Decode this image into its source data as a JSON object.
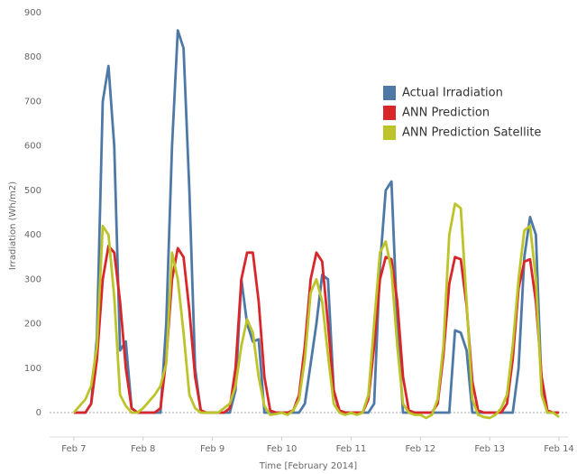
{
  "chart_data": {
    "type": "line",
    "x_label": "Time [February 2014]",
    "y_label": "Irradiation (Wh/m2)",
    "x": [
      7,
      7.083,
      7.167,
      7.25,
      7.333,
      7.417,
      7.5,
      7.583,
      7.667,
      7.75,
      7.833,
      7.917,
      8,
      8.083,
      8.167,
      8.25,
      8.333,
      8.417,
      8.5,
      8.583,
      8.667,
      8.75,
      8.833,
      8.917,
      9,
      9.083,
      9.167,
      9.25,
      9.333,
      9.417,
      9.5,
      9.583,
      9.667,
      9.75,
      9.833,
      9.917,
      10,
      10.083,
      10.167,
      10.25,
      10.333,
      10.417,
      10.5,
      10.583,
      10.667,
      10.75,
      10.833,
      10.917,
      11,
      11.083,
      11.167,
      11.25,
      11.333,
      11.417,
      11.5,
      11.583,
      11.667,
      11.75,
      11.833,
      11.917,
      12,
      12.083,
      12.167,
      12.25,
      12.333,
      12.417,
      12.5,
      12.583,
      12.667,
      12.75,
      12.833,
      12.917,
      13,
      13.083,
      13.167,
      13.25,
      13.333,
      13.417,
      13.5,
      13.583,
      13.667,
      13.75,
      13.833,
      13.917,
      14
    ],
    "series": [
      {
        "name": "Actual Irradiation",
        "color": "#4e79a7",
        "values": [
          0,
          0,
          0,
          20,
          170,
          700,
          780,
          600,
          140,
          160,
          10,
          0,
          0,
          0,
          0,
          0,
          200,
          600,
          860,
          820,
          500,
          100,
          0,
          0,
          0,
          0,
          0,
          0,
          50,
          300,
          200,
          160,
          165,
          0,
          0,
          0,
          0,
          0,
          0,
          0,
          20,
          110,
          200,
          310,
          300,
          50,
          0,
          0,
          0,
          0,
          0,
          0,
          20,
          330,
          500,
          520,
          200,
          0,
          0,
          0,
          0,
          0,
          0,
          0,
          0,
          0,
          185,
          180,
          140,
          0,
          0,
          0,
          0,
          0,
          0,
          0,
          0,
          100,
          350,
          440,
          400,
          50,
          0,
          0,
          0
        ]
      },
      {
        "name": "ANN Prediction",
        "color": "#d9262b",
        "values": [
          0,
          0,
          0,
          20,
          120,
          300,
          375,
          360,
          250,
          100,
          10,
          0,
          0,
          0,
          0,
          10,
          120,
          300,
          370,
          350,
          230,
          80,
          5,
          0,
          0,
          0,
          0,
          10,
          100,
          300,
          360,
          360,
          250,
          80,
          5,
          0,
          0,
          0,
          5,
          40,
          150,
          300,
          360,
          340,
          200,
          50,
          5,
          0,
          0,
          0,
          0,
          30,
          150,
          300,
          350,
          345,
          250,
          80,
          5,
          0,
          0,
          0,
          0,
          20,
          130,
          290,
          350,
          345,
          240,
          70,
          5,
          0,
          0,
          0,
          0,
          20,
          120,
          280,
          340,
          345,
          250,
          80,
          5,
          0,
          0
        ]
      },
      {
        "name": "ANN Prediction Satellite",
        "color": "#bcc42a",
        "values": [
          0,
          15,
          30,
          60,
          150,
          420,
          400,
          260,
          40,
          15,
          0,
          0,
          10,
          25,
          40,
          60,
          110,
          360,
          300,
          180,
          40,
          10,
          0,
          0,
          0,
          0,
          10,
          20,
          60,
          150,
          210,
          180,
          80,
          15,
          -5,
          -3,
          0,
          -5,
          5,
          30,
          120,
          270,
          300,
          250,
          130,
          20,
          0,
          -5,
          0,
          -5,
          0,
          40,
          200,
          360,
          385,
          320,
          150,
          20,
          0,
          -5,
          -5,
          -12,
          -5,
          30,
          150,
          400,
          470,
          460,
          250,
          30,
          -5,
          -10,
          -12,
          -5,
          10,
          40,
          150,
          300,
          410,
          420,
          300,
          40,
          0,
          0,
          -10
        ]
      }
    ],
    "xlim": [
      6.65,
      14.13
    ],
    "xticks": [
      {
        "value": 7,
        "label": "Feb 7"
      },
      {
        "value": 8,
        "label": "Feb 8"
      },
      {
        "value": 9,
        "label": "Feb 9"
      },
      {
        "value": 10,
        "label": "Feb 10"
      },
      {
        "value": 11,
        "label": "Feb 11"
      },
      {
        "value": 12,
        "label": "Feb 12"
      },
      {
        "value": 13,
        "label": "Feb 13"
      },
      {
        "value": 14,
        "label": "Feb 14"
      }
    ],
    "ylim": [
      -67,
      900
    ],
    "yticks": [
      0,
      100,
      200,
      300,
      400,
      500,
      600,
      700,
      800,
      900
    ],
    "zero_line": true,
    "legend": "top-right"
  }
}
